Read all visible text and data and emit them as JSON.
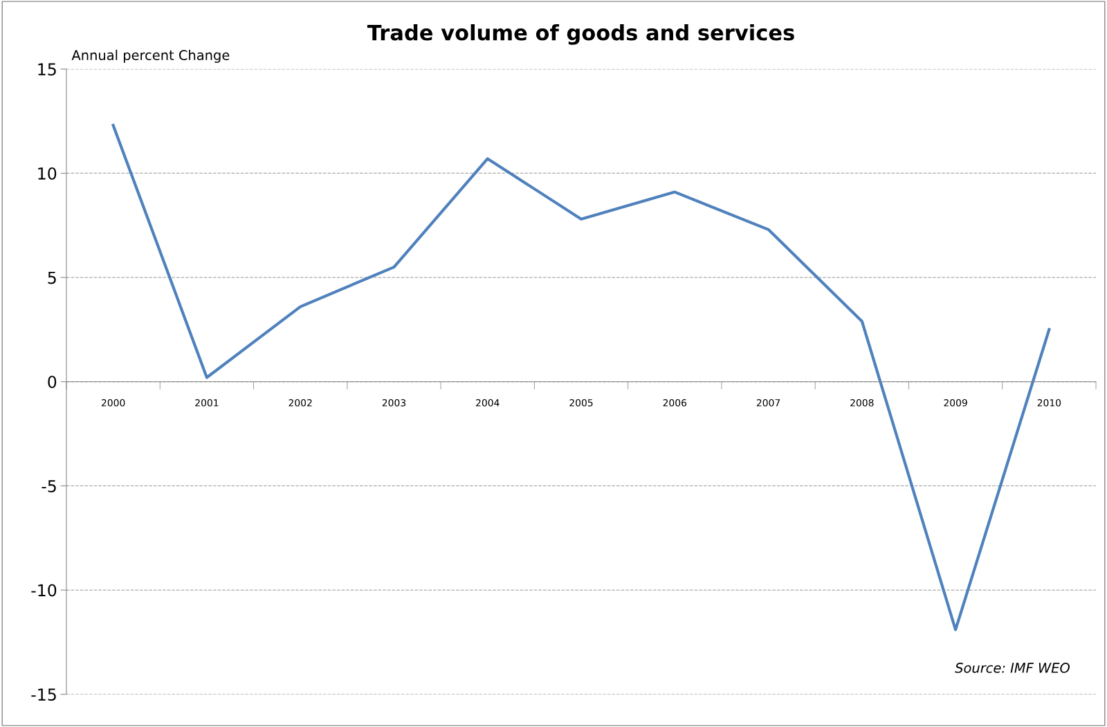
{
  "chart_data": {
    "type": "line",
    "title": "Trade volume of goods and services",
    "ylabel": "Annual percent Change",
    "categories": [
      "2000",
      "2001",
      "2002",
      "2003",
      "2004",
      "2005",
      "2006",
      "2007",
      "2008",
      "2009",
      "2010"
    ],
    "series": [
      {
        "color": "#4f81bd",
        "values": [
          12.3,
          0.2,
          3.6,
          5.5,
          10.7,
          7.8,
          9.1,
          7.3,
          2.9,
          -11.9,
          2.5
        ]
      }
    ],
    "ylim": [
      -15,
      15
    ],
    "yticks": [
      -15,
      -10,
      -5,
      0,
      5,
      10,
      15
    ],
    "grid": "y",
    "legend": false,
    "marker": "none",
    "line_style": "solid",
    "annotations": [
      "Source: IMF WEO"
    ]
  }
}
